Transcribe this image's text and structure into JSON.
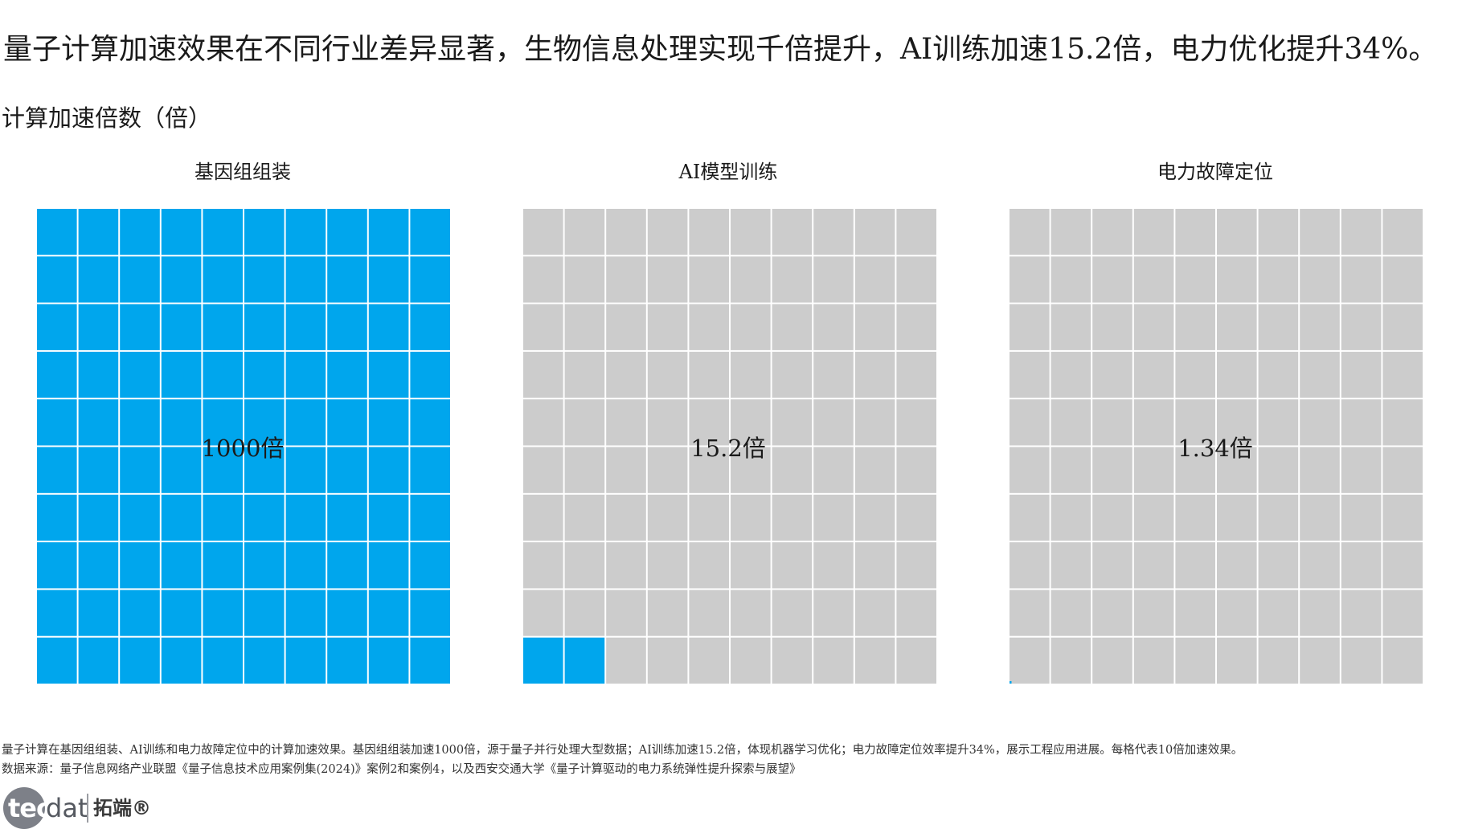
{
  "title": "量子计算加速效果在不同行业差异显著，生物信息处理实现千倍提升，AI训练加速15.2倍，电力优化提升34%。",
  "subtitle": "计算加速倍数（倍）",
  "colors": {
    "filled": "#00a6ed",
    "empty": "#cccccc",
    "gap": "#ffffff"
  },
  "chart_data": {
    "type": "waffle",
    "grid": {
      "rows": 10,
      "cols": 10
    },
    "panels": [
      {
        "title": "基因组组装",
        "label": "1000倍",
        "value": 1000,
        "filled_cells": 100
      },
      {
        "title": "AI模型训练",
        "label": "15.2倍",
        "value": 15.2,
        "filled_cells": 2
      },
      {
        "title": "电力故障定位",
        "label": "1.34倍",
        "value": 1.34,
        "filled_cells": 0.134
      }
    ]
  },
  "footnote": {
    "note": "量子计算在基因组组装、AI训练和电力故障定位中的计算加速效果。基因组组装加速1000倍，源于量子并行处理大型数据；AI训练加速15.2倍，体现机器学习优化；电力故障定位效率提升34%，展示工程应用进展。每格代表10倍加速效果。",
    "source": "数据来源：量子信息网络产业联盟《量子信息技术应用案例集(2024)》案例2和案例4，以及西安交通大学《量子计算驱动的电力系统弹性提升探索与展望》"
  },
  "logo": {
    "tec": "tec",
    "dat": "dat",
    "cn": "拓端®"
  }
}
